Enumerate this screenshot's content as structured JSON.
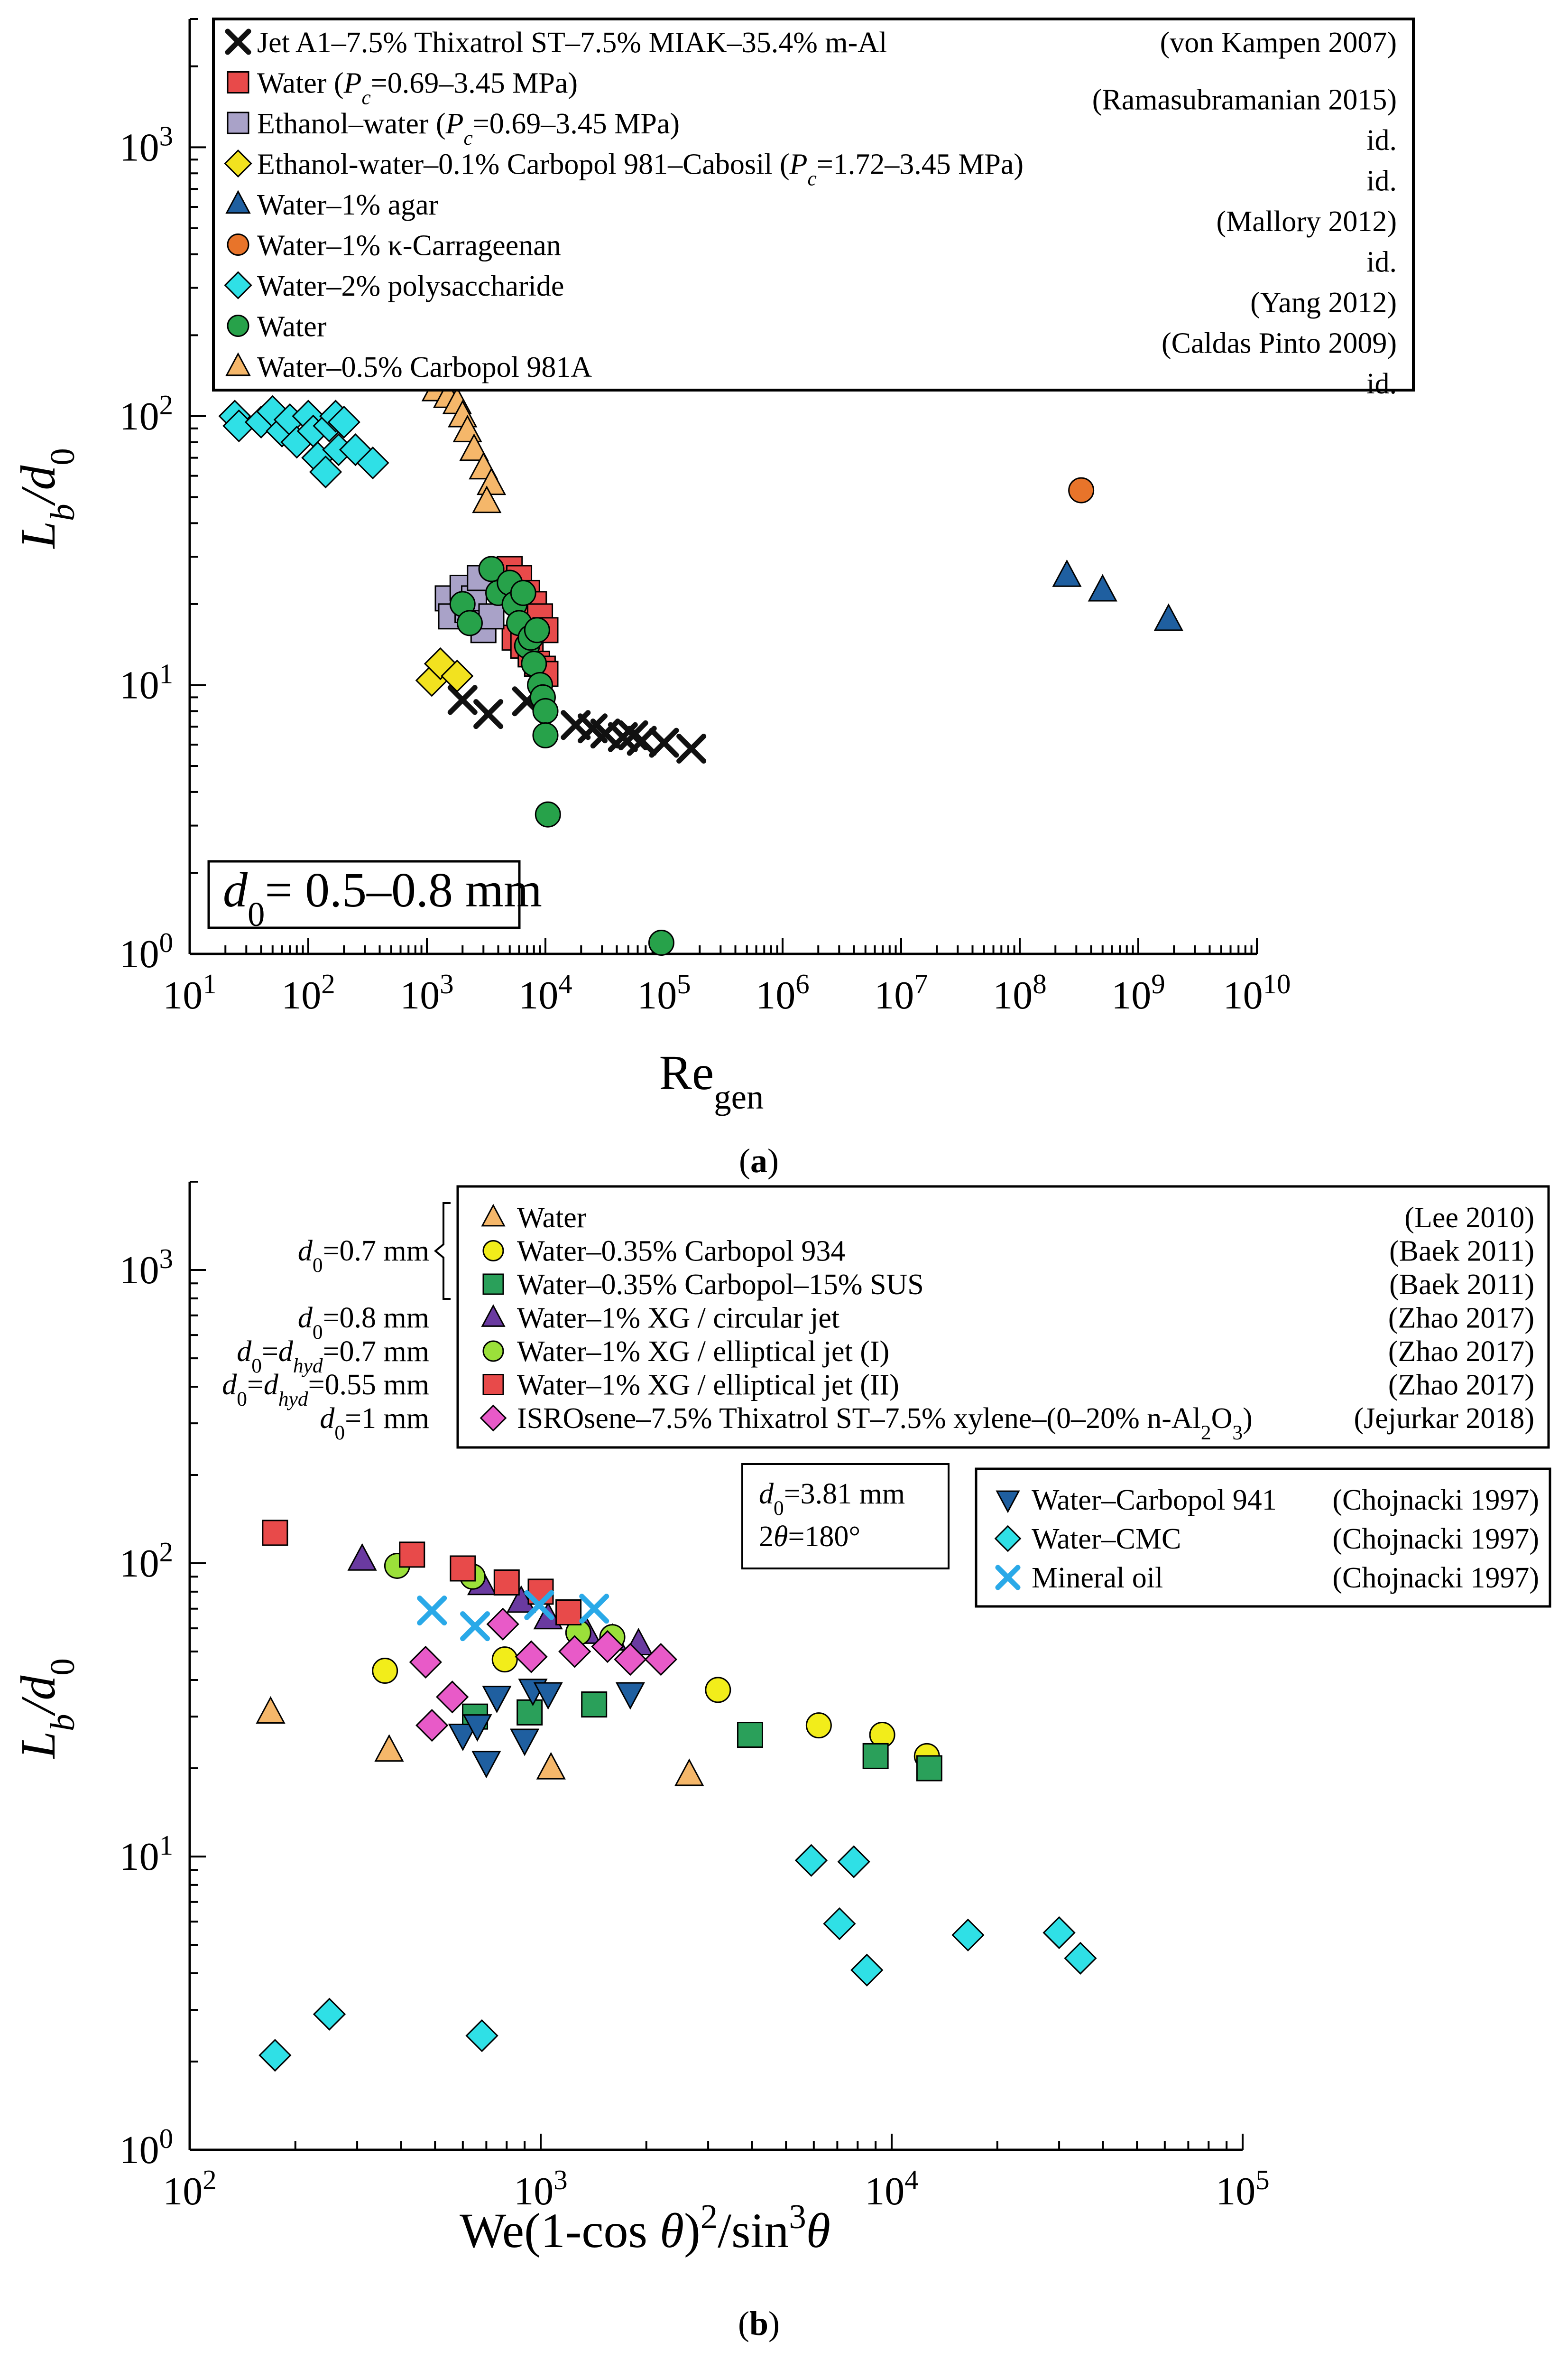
{
  "chart_data": [
    {
      "id": "a",
      "type": "scatter",
      "caption": "(a)",
      "xscale": "log",
      "yscale": "log",
      "xlim": [
        10,
        10000000000
      ],
      "ylim": [
        1,
        3000
      ],
      "xlabel": "Re_gen",
      "ylabel": "L_b/d_0",
      "xticks": [
        {
          "v": 10,
          "e": "1"
        },
        {
          "v": 100,
          "e": "2"
        },
        {
          "v": 1000,
          "e": "3"
        },
        {
          "v": 10000,
          "e": "4"
        },
        {
          "v": 100000,
          "e": "5"
        },
        {
          "v": 1000000,
          "e": "6"
        },
        {
          "v": 10000000,
          "e": "7"
        },
        {
          "v": 100000000,
          "e": "8"
        },
        {
          "v": 1000000000,
          "e": "9"
        },
        {
          "v": 10000000000,
          "e": "10"
        }
      ],
      "yticks": [
        {
          "v": 1,
          "e": "0"
        },
        {
          "v": 10,
          "e": "1"
        },
        {
          "v": 100,
          "e": "2"
        },
        {
          "v": 1000,
          "e": "3"
        }
      ],
      "annotation": "d0= 0.5–0.8 mm",
      "legend_position": "top",
      "series": [
        {
          "name": "Jet A1–7.5% Thixatrol ST–7.5% MIAK–35.4% m-Al",
          "source": "(von Kampen 2007)",
          "marker": "x",
          "color": "#111111",
          "points": [
            [
              2000,
              8.8
            ],
            [
              3300,
              7.8
            ],
            [
              7000,
              8.7
            ],
            [
              18000,
              7.1
            ],
            [
              25000,
              6.9
            ],
            [
              32000,
              6.6
            ],
            [
              45000,
              6.4
            ],
            [
              55000,
              6.5
            ],
            [
              65000,
              6.2
            ],
            [
              100000,
              6.1
            ],
            [
              170000,
              5.8
            ]
          ]
        },
        {
          "name": "Water (Pc=0.69–3.45 MPa)",
          "source": "(Ramasubramanian 2015)",
          "marker": "square",
          "color": "#e84a4a",
          "points": [
            [
              5000,
              27
            ],
            [
              6000,
              25
            ],
            [
              7000,
              22
            ],
            [
              8000,
              20
            ],
            [
              9000,
              18
            ],
            [
              10000,
              16
            ],
            [
              5500,
              15
            ],
            [
              6500,
              14
            ],
            [
              7500,
              13
            ],
            [
              8500,
              12
            ],
            [
              9500,
              11.5
            ],
            [
              10000,
              11
            ]
          ]
        },
        {
          "name": "Ethanol–water (Pc=0.69–3.45 MPa)",
          "source": "id.",
          "marker": "square",
          "color": "#a9a2c8",
          "points": [
            [
              1500,
              21
            ],
            [
              1600,
              18
            ],
            [
              2000,
              23
            ],
            [
              2200,
              19
            ],
            [
              2500,
              21
            ],
            [
              2800,
              25
            ],
            [
              3000,
              16
            ],
            [
              3500,
              18
            ]
          ]
        },
        {
          "name": "Ethanol-water–0.1% Carbopol 981–Cabosil (Pc=1.72–3.45 MPa)",
          "source": "id.",
          "marker": "diamond",
          "color": "#f2e21f",
          "points": [
            [
              1100,
              10.4
            ],
            [
              1300,
              12
            ],
            [
              1800,
              10.8
            ]
          ]
        },
        {
          "name": "Water–1% agar",
          "source": "(Mallory 2012)",
          "marker": "triangle",
          "color": "#1f5fa0",
          "points": [
            [
              250000000,
              25.5
            ],
            [
              500000000,
              22.5
            ],
            [
              1800000000,
              17.5
            ]
          ]
        },
        {
          "name": "Water–1% κ-Carrageenan",
          "source": "id.",
          "marker": "circle",
          "color": "#e8742a",
          "points": [
            [
              330000000,
              53
            ]
          ]
        },
        {
          "name": "Water–2% polysaccharide",
          "source": "(Yang 2012)",
          "marker": "diamond",
          "color": "#2fe0e6",
          "points": [
            [
              24,
              100
            ],
            [
              26,
              92
            ],
            [
              40,
              95
            ],
            [
              50,
              104
            ],
            [
              60,
              88
            ],
            [
              70,
              97
            ],
            [
              80,
              80
            ],
            [
              100,
              100
            ],
            [
              110,
              88
            ],
            [
              120,
              70
            ],
            [
              140,
              62
            ],
            [
              150,
              92
            ],
            [
              170,
              100
            ],
            [
              180,
              75
            ],
            [
              200,
              95
            ],
            [
              250,
              75
            ],
            [
              350,
              67
            ]
          ]
        },
        {
          "name": "Water",
          "source": "(Caldas Pinto 2009)",
          "marker": "circle",
          "color": "#27a24a",
          "points": [
            [
              2000,
              20
            ],
            [
              2300,
              17
            ],
            [
              3500,
              27
            ],
            [
              4000,
              22
            ],
            [
              5000,
              24
            ],
            [
              5500,
              20
            ],
            [
              6000,
              17
            ],
            [
              6500,
              22
            ],
            [
              7000,
              14
            ],
            [
              7500,
              15
            ],
            [
              8000,
              12
            ],
            [
              8500,
              16
            ],
            [
              9000,
              10
            ],
            [
              9500,
              9
            ],
            [
              10000,
              8
            ],
            [
              10000,
              6.5
            ],
            [
              10500,
              3.3
            ],
            [
              95000,
              1.1
            ]
          ]
        },
        {
          "name": "Water–0.5% Carbopol 981A",
          "source": "id.",
          "marker": "triangle",
          "color": "#f5b76a",
          "points": [
            [
              1200,
              125
            ],
            [
              1500,
              118
            ],
            [
              1800,
              112
            ],
            [
              2000,
              100
            ],
            [
              2200,
              88
            ],
            [
              2500,
              75
            ],
            [
              3000,
              64
            ],
            [
              3500,
              56
            ],
            [
              3200,
              48
            ]
          ]
        }
      ]
    },
    {
      "id": "b",
      "type": "scatter",
      "caption": "(b)",
      "xscale": "log",
      "yscale": "log",
      "xlim": [
        100,
        100000
      ],
      "ylim": [
        1,
        2000
      ],
      "xlabel": "We(1-cos θ)²/sin³θ",
      "ylabel": "L_b/d_0",
      "xticks": [
        {
          "v": 100,
          "e": "2"
        },
        {
          "v": 1000,
          "e": "3"
        },
        {
          "v": 10000,
          "e": "4"
        },
        {
          "v": 100000,
          "e": "5"
        }
      ],
      "yticks": [
        {
          "v": 1,
          "e": "0"
        },
        {
          "v": 10,
          "e": "1"
        },
        {
          "v": 100,
          "e": "2"
        },
        {
          "v": 1000,
          "e": "3"
        }
      ],
      "annotation": [
        "d0=3.81 mm",
        "2θ=180°"
      ],
      "legend_position": "top-right",
      "side_labels": [
        "d0=0.7 mm",
        "d0=0.8 mm",
        "d0=dhyd=0.7 mm",
        "d0=dhyd=0.55 mm",
        "d0=1 mm"
      ],
      "series": [
        {
          "name": "Water",
          "source": "(Lee 2010)",
          "legend": 1,
          "marker": "triangle",
          "color": "#f5b76a",
          "points": [
            [
              170,
              31
            ],
            [
              370,
              23
            ],
            [
              1070,
              20
            ],
            [
              2650,
              19
            ]
          ]
        },
        {
          "name": "Water–0.35% Carbopol 934",
          "source": "(Baek 2011)",
          "legend": 1,
          "marker": "circle",
          "color": "#f2ed1a",
          "points": [
            [
              360,
              43
            ],
            [
              790,
              47
            ],
            [
              3200,
              37
            ],
            [
              6200,
              28
            ],
            [
              9400,
              26
            ],
            [
              12600,
              22
            ]
          ]
        },
        {
          "name": "Water–0.35% Carbopol–15% SUS",
          "source": "(Baek 2011)",
          "legend": 1,
          "marker": "square",
          "color": "#2aa05a",
          "points": [
            [
              650,
              30
            ],
            [
              930,
              31
            ],
            [
              1420,
              33
            ],
            [
              3950,
              26
            ],
            [
              9000,
              22
            ],
            [
              12800,
              20
            ]
          ]
        },
        {
          "name": "Water–1% XG / circular jet",
          "source": "(Zhao 2017)",
          "legend": 1,
          "marker": "triangle",
          "color": "#6a3aa0",
          "points": [
            [
              310,
              103
            ],
            [
              680,
              85
            ],
            [
              880,
              74
            ],
            [
              1050,
              65
            ],
            [
              1350,
              58
            ],
            [
              1600,
              55
            ],
            [
              1900,
              53
            ]
          ]
        },
        {
          "name": "Water–1% XG / elliptical jet (I)",
          "source": "(Zhao 2017)",
          "legend": 1,
          "marker": "circle",
          "color": "#9be03a",
          "points": [
            [
              390,
              98
            ],
            [
              640,
              90
            ],
            [
              1280,
              58
            ],
            [
              1600,
              56
            ]
          ]
        },
        {
          "name": "Water–1% XG / elliptical jet (II)",
          "source": "(Zhao 2017)",
          "legend": 1,
          "marker": "square",
          "color": "#e84a4a",
          "points": [
            [
              175,
              127
            ],
            [
              430,
              107
            ],
            [
              600,
              96
            ],
            [
              800,
              86
            ],
            [
              1000,
              80
            ],
            [
              1200,
              68
            ]
          ]
        },
        {
          "name": "ISROsene–7.5% Thixatrol ST–7.5% xylene–(0–20% n-Al2O3)",
          "source": "(Jejurkar 2018)",
          "legend": 1,
          "marker": "diamond",
          "color": "#e85ac8",
          "points": [
            [
              470,
              46
            ],
            [
              490,
              28
            ],
            [
              560,
              35
            ],
            [
              780,
              62
            ],
            [
              940,
              48
            ],
            [
              1250,
              50
            ],
            [
              1550,
              52
            ],
            [
              1800,
              47
            ],
            [
              2200,
              47
            ]
          ]
        },
        {
          "name": "Water–Carbopol 941",
          "source": "(Chojnacki 1997)",
          "legend": 2,
          "marker": "triangle-down",
          "color": "#1f5fa0",
          "points": [
            [
              600,
              26
            ],
            [
              660,
              28
            ],
            [
              700,
              21
            ],
            [
              750,
              35
            ],
            [
              900,
              25
            ],
            [
              950,
              37
            ],
            [
              1050,
              36
            ],
            [
              1800,
              36
            ]
          ]
        },
        {
          "name": "Water–CMC",
          "source": "(Chojnacki 1997)",
          "legend": 2,
          "marker": "diamond",
          "color": "#2fe0e6",
          "points": [
            [
              175,
              2.1
            ],
            [
              250,
              2.9
            ],
            [
              680,
              2.45
            ],
            [
              5900,
              9.7
            ],
            [
              7800,
              9.6
            ],
            [
              7100,
              5.9
            ],
            [
              8500,
              4.1
            ],
            [
              16500,
              5.4
            ],
            [
              30000,
              5.5
            ],
            [
              34500,
              4.5
            ]
          ]
        },
        {
          "name": "Mineral oil",
          "source": "(Chojnacki 1997)",
          "legend": 2,
          "marker": "x",
          "color": "#2aa9e8",
          "points": [
            [
              490,
              69
            ],
            [
              650,
              61
            ],
            [
              990,
              72
            ],
            [
              1420,
              70
            ]
          ]
        }
      ]
    }
  ]
}
